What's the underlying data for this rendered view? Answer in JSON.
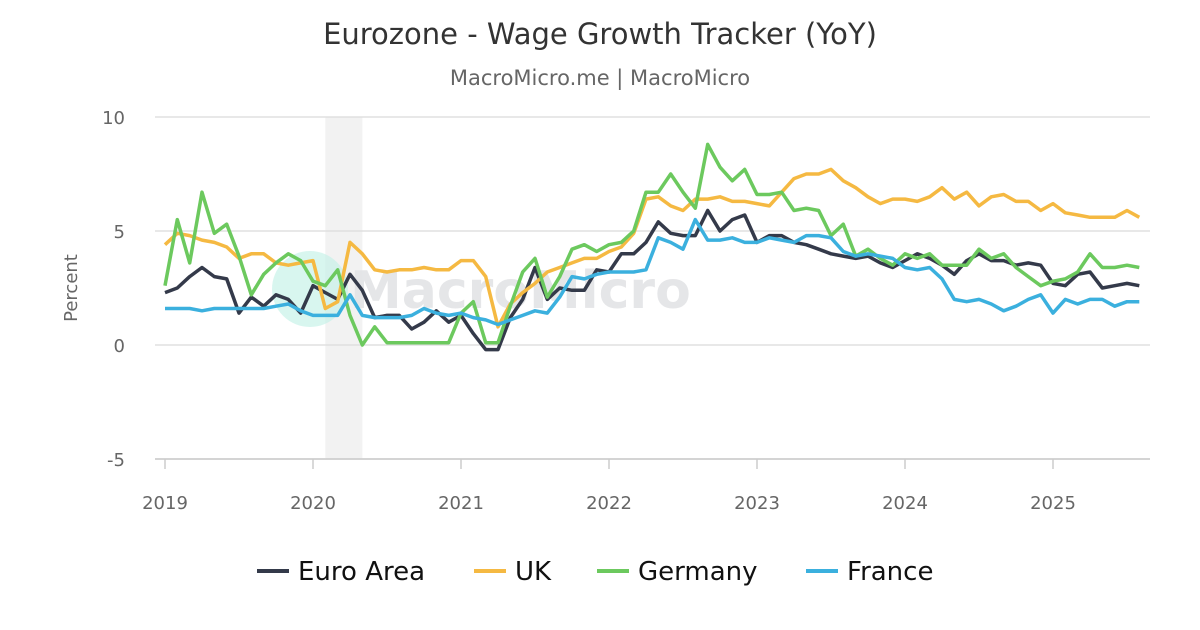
{
  "chart_data": {
    "type": "line",
    "title": "Eurozone - Wage Growth Tracker (YoY)",
    "subtitle": "MacroMicro.me | MacroMicro",
    "watermark": "MacroMicro",
    "ylabel": "Percent",
    "xlabel": "",
    "ylim": [
      -5,
      10
    ],
    "yticks": [
      "10",
      "5",
      "0",
      "-5"
    ],
    "xticks": [
      "2019",
      "2020",
      "2021",
      "2022",
      "2023",
      "2024",
      "2025"
    ],
    "x_start": "2019-01",
    "x_frequency": "monthly",
    "x_end": "2025-08",
    "grid": true,
    "legend_position": "bottom",
    "shaded_period": {
      "from": "2020-02",
      "to": "2020-05",
      "color": "#f2f2f2"
    },
    "series": [
      {
        "name": "Euro Area",
        "color": "#343a4a",
        "values": [
          2.3,
          2.5,
          3.0,
          3.4,
          3.0,
          2.9,
          1.4,
          2.1,
          1.7,
          2.2,
          2.0,
          1.4,
          2.6,
          2.3,
          2.0,
          3.1,
          2.4,
          1.2,
          1.3,
          1.3,
          0.7,
          1.0,
          1.5,
          1.0,
          1.3,
          0.5,
          -0.2,
          -0.2,
          1.2,
          2.0,
          3.4,
          2.0,
          2.5,
          2.4,
          2.4,
          3.3,
          3.2,
          4.0,
          4.0,
          4.5,
          5.4,
          4.9,
          4.8,
          4.8,
          5.9,
          5.0,
          5.5,
          5.7,
          4.5,
          4.8,
          4.8,
          4.5,
          4.4,
          4.2,
          4.0,
          3.9,
          3.8,
          3.9,
          3.6,
          3.4,
          3.7,
          4.0,
          3.8,
          3.5,
          3.1,
          3.7,
          4.0,
          3.7,
          3.7,
          3.5,
          3.6,
          3.5,
          2.7,
          2.6,
          3.1,
          3.2,
          2.5,
          2.6,
          2.7,
          2.6
        ]
      },
      {
        "name": "UK",
        "color": "#f5b942",
        "values": [
          4.4,
          4.9,
          4.8,
          4.6,
          4.5,
          4.3,
          3.8,
          4.0,
          4.0,
          3.6,
          3.5,
          3.6,
          3.7,
          1.6,
          1.9,
          4.5,
          4.0,
          3.3,
          3.2,
          3.3,
          3.3,
          3.4,
          3.3,
          3.3,
          3.7,
          3.7,
          3.0,
          0.8,
          1.8,
          2.3,
          2.7,
          3.2,
          3.4,
          3.6,
          3.8,
          3.8,
          4.1,
          4.3,
          4.9,
          6.4,
          6.5,
          6.1,
          5.9,
          6.4,
          6.4,
          6.5,
          6.3,
          6.3,
          6.2,
          6.1,
          6.7,
          7.3,
          7.5,
          7.5,
          7.7,
          7.2,
          6.9,
          6.5,
          6.2,
          6.4,
          6.4,
          6.3,
          6.5,
          6.9,
          6.4,
          6.7,
          6.1,
          6.5,
          6.6,
          6.3,
          6.3,
          5.9,
          6.2,
          5.8,
          5.7,
          5.6,
          5.6,
          5.6,
          5.9,
          5.6
        ]
      },
      {
        "name": "Germany",
        "color": "#6cc95e",
        "values": [
          2.6,
          5.5,
          3.6,
          6.7,
          4.9,
          5.3,
          3.9,
          2.2,
          3.1,
          3.6,
          4.0,
          3.7,
          2.8,
          2.6,
          3.3,
          1.3,
          0.0,
          0.8,
          0.1,
          0.1,
          0.1,
          0.1,
          0.1,
          0.1,
          1.4,
          1.9,
          0.1,
          0.1,
          1.7,
          3.2,
          3.8,
          2.1,
          3.0,
          4.2,
          4.4,
          4.1,
          4.4,
          4.5,
          5.0,
          6.7,
          6.7,
          7.5,
          6.7,
          6.0,
          8.8,
          7.8,
          7.2,
          7.7,
          6.6,
          6.6,
          6.7,
          5.9,
          6.0,
          5.9,
          4.8,
          5.3,
          3.9,
          4.2,
          3.8,
          3.5,
          4.0,
          3.8,
          4.0,
          3.5,
          3.5,
          3.5,
          4.2,
          3.8,
          4.0,
          3.4,
          3.0,
          2.6,
          2.8,
          2.9,
          3.2,
          4.0,
          3.4,
          3.4,
          3.5,
          3.4
        ]
      },
      {
        "name": "France",
        "color": "#3bb0de",
        "values": [
          1.6,
          1.6,
          1.6,
          1.5,
          1.6,
          1.6,
          1.6,
          1.6,
          1.6,
          1.7,
          1.8,
          1.5,
          1.3,
          1.3,
          1.3,
          2.2,
          1.3,
          1.2,
          1.2,
          1.2,
          1.3,
          1.6,
          1.4,
          1.3,
          1.4,
          1.2,
          1.1,
          0.9,
          1.1,
          1.3,
          1.5,
          1.4,
          2.1,
          3.0,
          2.9,
          3.1,
          3.2,
          3.2,
          3.2,
          3.3,
          4.7,
          4.5,
          4.2,
          5.5,
          4.6,
          4.6,
          4.7,
          4.5,
          4.5,
          4.7,
          4.6,
          4.5,
          4.8,
          4.8,
          4.7,
          4.1,
          3.9,
          4.0,
          3.9,
          3.8,
          3.4,
          3.3,
          3.4,
          2.9,
          2.0,
          1.9,
          2.0,
          1.8,
          1.5,
          1.7,
          2.0,
          2.2,
          1.4,
          2.0,
          1.8,
          2.0,
          2.0,
          1.7,
          1.9,
          1.9
        ]
      }
    ]
  }
}
